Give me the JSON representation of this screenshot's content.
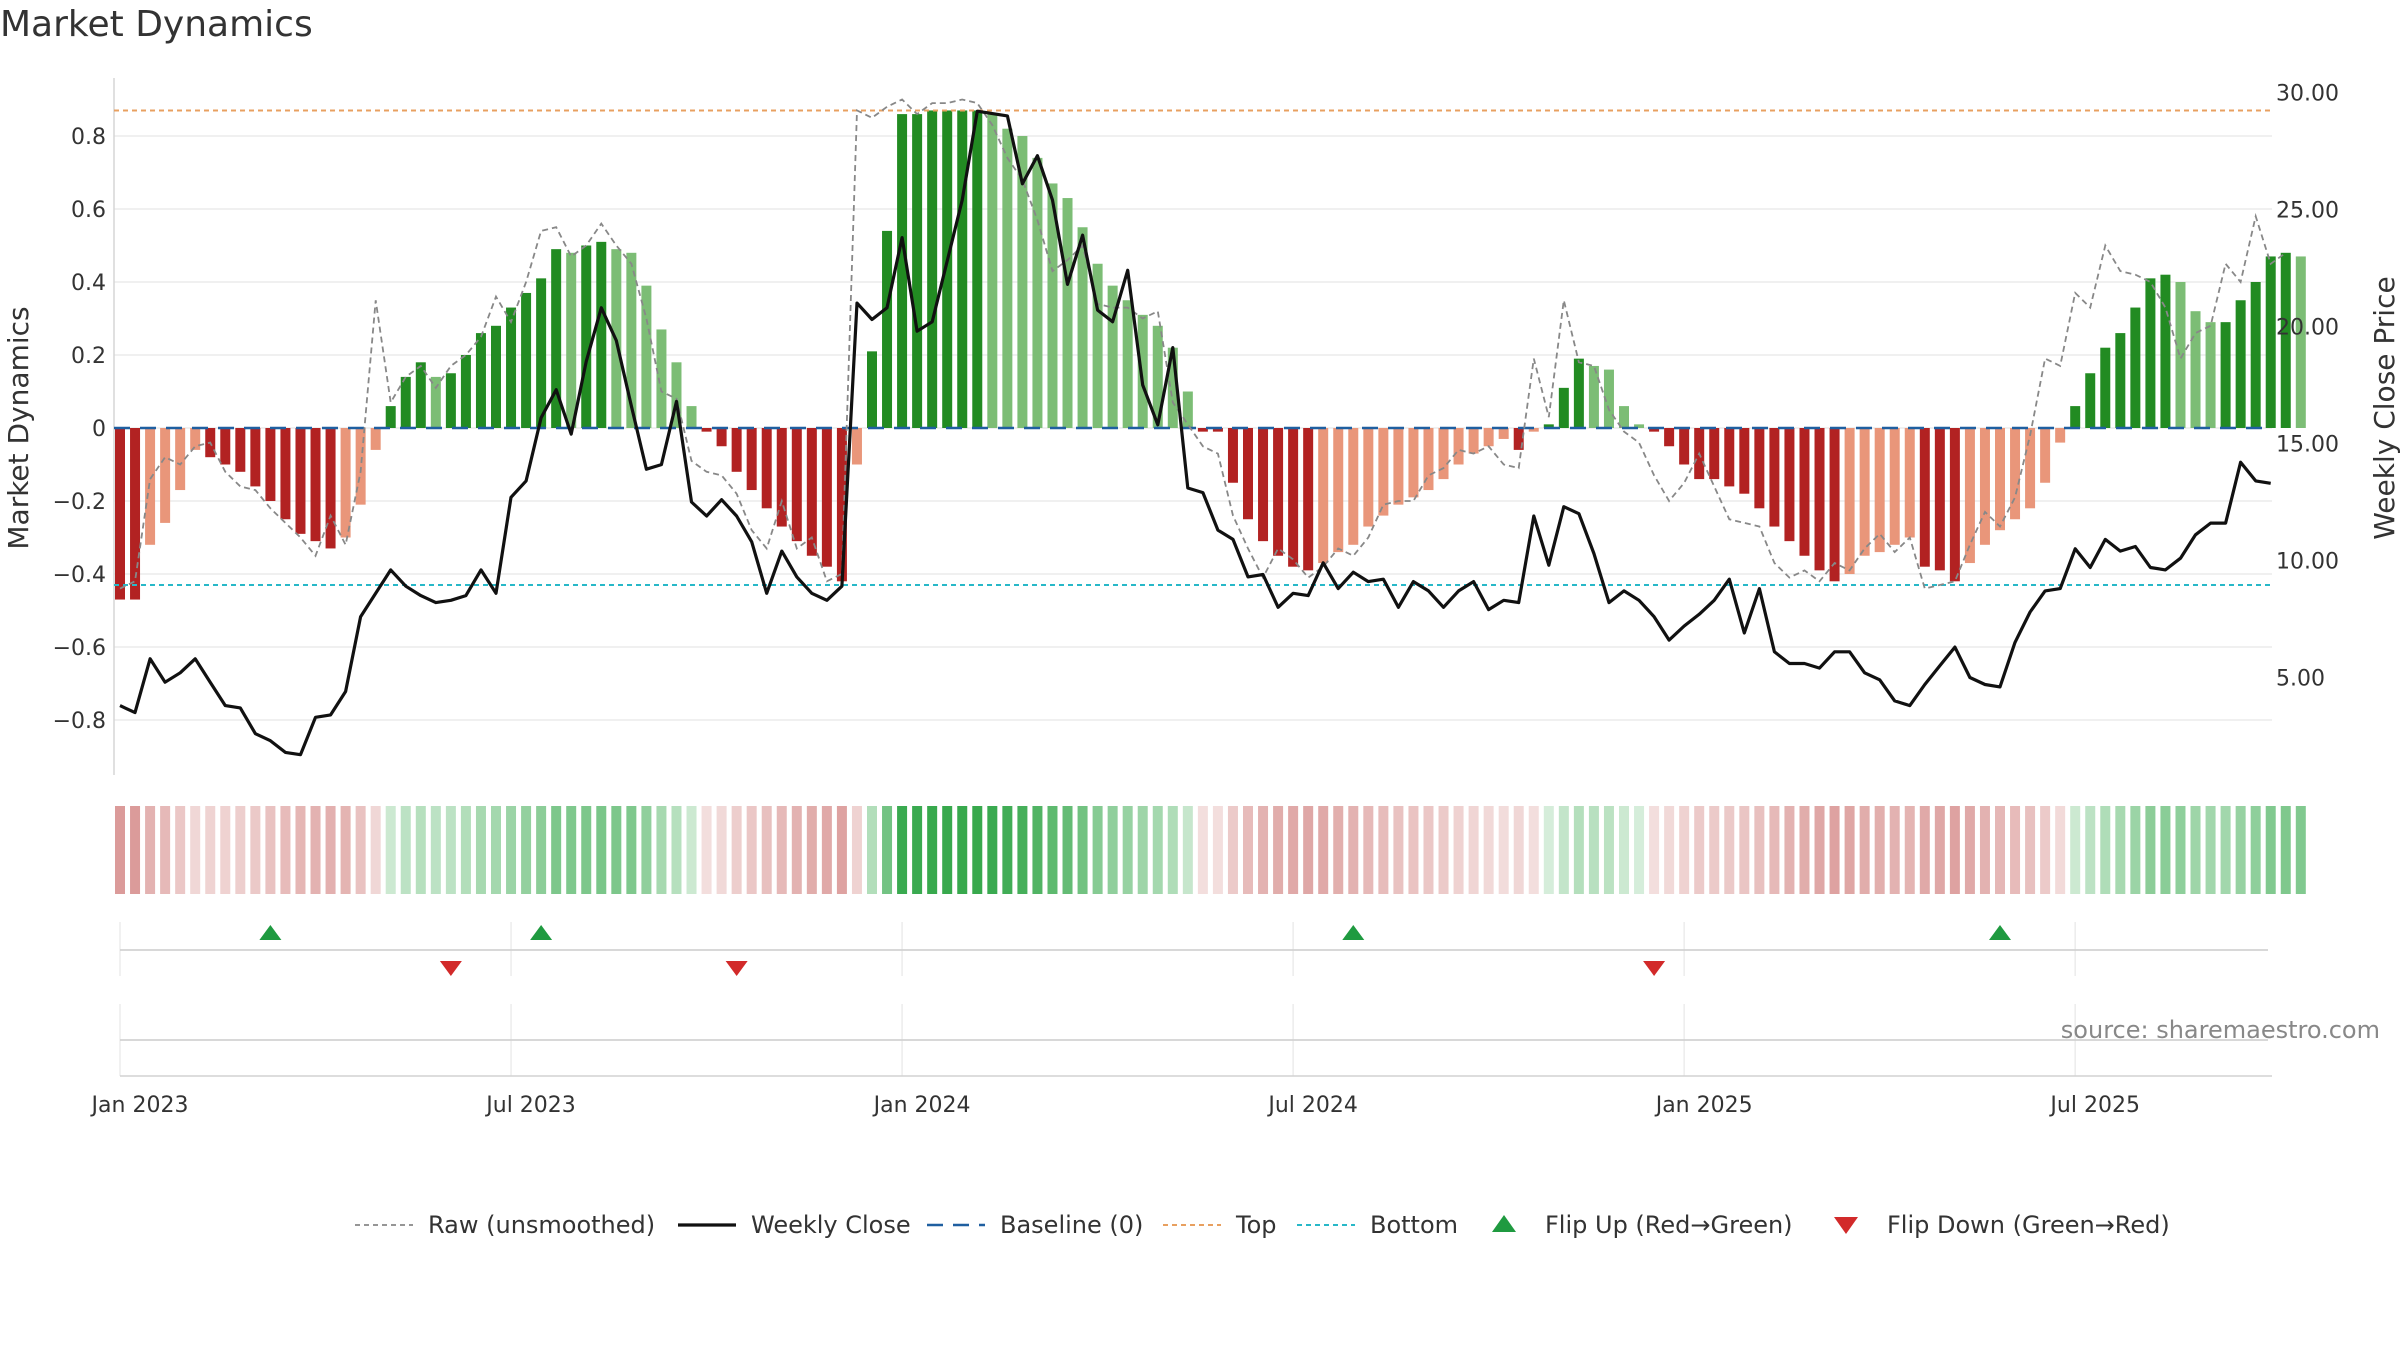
{
  "chart_data": {
    "type": "bar+line",
    "title": "Market Dynamics",
    "ylabel_left": "Market Dynamics",
    "ylabel_right": "Weekly Close Price",
    "ylim_left": [
      -0.95,
      0.95
    ],
    "ylim_right": [
      1.0,
      31.5
    ],
    "left_ticks": [
      0.8,
      0.6,
      0.4,
      0.2,
      0,
      -0.2,
      -0.4,
      -0.6,
      -0.8
    ],
    "left_tick_labels": [
      "0.8",
      "0.6",
      "0.4",
      "0.2",
      "0",
      "−0.2",
      "−0.4",
      "−0.6",
      "−0.8"
    ],
    "right_ticks": [
      30,
      25,
      20,
      15,
      10,
      5
    ],
    "right_tick_labels": [
      "30.00",
      "25.00",
      "20.00",
      "15.00",
      "10.00",
      "5.00"
    ],
    "top_level": 0.87,
    "bottom_level": -0.43,
    "x_tick_weeks": [
      0,
      26,
      52,
      78,
      104,
      130
    ],
    "x_tick_labels": [
      "Jan 2023",
      "Jul 2023",
      "Jan 2024",
      "Jul 2024",
      "Jan 2025",
      "Jul 2025"
    ],
    "dynamics": [
      -0.47,
      -0.47,
      -0.32,
      -0.26,
      -0.17,
      -0.06,
      -0.08,
      -0.1,
      -0.12,
      -0.16,
      -0.2,
      -0.25,
      -0.29,
      -0.31,
      -0.33,
      -0.3,
      -0.21,
      -0.06,
      0.06,
      0.14,
      0.18,
      0.14,
      0.15,
      0.2,
      0.26,
      0.28,
      0.33,
      0.37,
      0.41,
      0.49,
      0.48,
      0.5,
      0.51,
      0.49,
      0.48,
      0.39,
      0.27,
      0.18,
      0.06,
      -0.01,
      -0.05,
      -0.12,
      -0.17,
      -0.22,
      -0.27,
      -0.31,
      -0.35,
      -0.38,
      -0.42,
      -0.1,
      0.21,
      0.54,
      0.86,
      0.86,
      0.87,
      0.87,
      0.87,
      0.87,
      0.86,
      0.82,
      0.8,
      0.74,
      0.67,
      0.63,
      0.55,
      0.45,
      0.39,
      0.35,
      0.31,
      0.28,
      0.22,
      0.1,
      -0.01,
      -0.01,
      -0.15,
      -0.25,
      -0.31,
      -0.35,
      -0.38,
      -0.39,
      -0.37,
      -0.34,
      -0.32,
      -0.27,
      -0.24,
      -0.21,
      -0.19,
      -0.17,
      -0.14,
      -0.1,
      -0.07,
      -0.05,
      -0.03,
      -0.06,
      -0.01,
      0.01,
      0.11,
      0.19,
      0.17,
      0.16,
      0.06,
      0.01,
      -0.01,
      -0.05,
      -0.1,
      -0.14,
      -0.14,
      -0.16,
      -0.18,
      -0.22,
      -0.27,
      -0.31,
      -0.35,
      -0.39,
      -0.42,
      -0.4,
      -0.35,
      -0.34,
      -0.32,
      -0.3,
      -0.38,
      -0.39,
      -0.42,
      -0.37,
      -0.32,
      -0.28,
      -0.25,
      -0.22,
      -0.15,
      -0.04,
      0.06,
      0.15,
      0.22,
      0.26,
      0.33,
      0.41,
      0.42,
      0.4,
      0.32,
      0.29,
      0.29,
      0.35,
      0.4,
      0.47,
      0.48,
      0.47
    ],
    "raw": [
      -0.44,
      -0.42,
      -0.14,
      -0.08,
      -0.1,
      -0.05,
      -0.04,
      -0.12,
      -0.16,
      -0.17,
      -0.22,
      -0.26,
      -0.3,
      -0.35,
      -0.24,
      -0.32,
      -0.12,
      0.35,
      0.07,
      0.14,
      0.17,
      0.11,
      0.17,
      0.2,
      0.25,
      0.36,
      0.29,
      0.4,
      0.54,
      0.55,
      0.47,
      0.5,
      0.56,
      0.5,
      0.45,
      0.3,
      0.1,
      0.08,
      -0.09,
      -0.12,
      -0.13,
      -0.18,
      -0.28,
      -0.33,
      -0.2,
      -0.33,
      -0.3,
      -0.42,
      -0.4,
      0.87,
      0.85,
      0.88,
      0.9,
      0.86,
      0.89,
      0.89,
      0.9,
      0.89,
      0.83,
      0.74,
      0.68,
      0.57,
      0.43,
      0.46,
      0.5,
      0.34,
      0.33,
      0.33,
      0.3,
      0.32,
      0.07,
      0.01,
      -0.05,
      -0.07,
      -0.24,
      -0.33,
      -0.41,
      -0.33,
      -0.36,
      -0.41,
      -0.38,
      -0.33,
      -0.35,
      -0.3,
      -0.21,
      -0.2,
      -0.2,
      -0.13,
      -0.11,
      -0.06,
      -0.07,
      -0.05,
      -0.1,
      -0.11,
      0.19,
      0.03,
      0.35,
      0.18,
      0.17,
      0.05,
      -0.01,
      -0.04,
      -0.13,
      -0.2,
      -0.15,
      -0.07,
      -0.16,
      -0.25,
      -0.26,
      -0.27,
      -0.37,
      -0.41,
      -0.39,
      -0.42,
      -0.37,
      -0.39,
      -0.33,
      -0.29,
      -0.34,
      -0.3,
      -0.44,
      -0.43,
      -0.42,
      -0.32,
      -0.23,
      -0.27,
      -0.19,
      -0.02,
      0.19,
      0.17,
      0.37,
      0.33,
      0.5,
      0.43,
      0.42,
      0.4,
      0.33,
      0.19,
      0.26,
      0.28,
      0.45,
      0.4,
      0.58,
      0.45,
      0.48
    ],
    "close": [
      3.8,
      3.5,
      5.8,
      4.8,
      5.2,
      5.8,
      4.8,
      3.8,
      3.7,
      2.6,
      2.3,
      1.8,
      1.7,
      3.3,
      3.4,
      4.4,
      7.6,
      8.6,
      9.6,
      8.9,
      8.5,
      8.2,
      8.3,
      8.5,
      9.6,
      8.6,
      12.7,
      13.4,
      16.1,
      17.3,
      15.4,
      18.5,
      20.8,
      19.4,
      16.6,
      13.9,
      14.1,
      16.8,
      12.5,
      11.9,
      12.6,
      11.9,
      10.8,
      8.6,
      10.4,
      9.3,
      8.6,
      8.3,
      8.9,
      21.0,
      20.3,
      20.8,
      23.8,
      19.8,
      20.2,
      22.8,
      25.4,
      29.2,
      29.1,
      29.0,
      26.1,
      27.3,
      25.4,
      21.8,
      23.9,
      20.7,
      20.2,
      22.4,
      17.5,
      15.8,
      19.1,
      13.1,
      12.9,
      11.3,
      10.9,
      9.3,
      9.4,
      8.0,
      8.6,
      8.5,
      9.9,
      8.8,
      9.5,
      9.1,
      9.2,
      8.0,
      9.1,
      8.7,
      8.0,
      8.7,
      9.1,
      7.9,
      8.3,
      8.2,
      11.9,
      9.8,
      12.3,
      12.0,
      10.3,
      8.2,
      8.7,
      8.3,
      7.6,
      6.6,
      7.2,
      7.7,
      8.3,
      9.2,
      6.9,
      8.8,
      6.1,
      5.6,
      5.6,
      5.4,
      6.1,
      6.1,
      5.2,
      4.9,
      4.0,
      3.8,
      4.7,
      5.5,
      6.3,
      5.0,
      4.7,
      4.6,
      6.5,
      7.8,
      8.7,
      8.8,
      10.5,
      9.7,
      10.9,
      10.4,
      10.6,
      9.7,
      9.6,
      10.1,
      11.1,
      11.6,
      11.6,
      14.2,
      13.4,
      13.3
    ],
    "flips_up_weeks": [
      10,
      28,
      82,
      125
    ],
    "flips_down_weeks": [
      22,
      41,
      102
    ],
    "legend": [
      "Raw (unsmoothed)",
      "Weekly Close",
      "Baseline (0)",
      "Top",
      "Bottom",
      "Flip Up (Red→Green)",
      "Flip Down (Green→Red)"
    ],
    "source_note": "source: sharemaestro.com",
    "colors": {
      "strong_green": "#228b22",
      "light_green": "#7cbd75",
      "strong_red": "#b22222",
      "light_red": "#e9967a",
      "close_line": "#111111",
      "raw_line": "#888888",
      "baseline": "#1f5fa0",
      "top": "#e8a060",
      "bottom": "#28b8c8",
      "flip_up": "#1f9a40",
      "flip_down": "#d22a2a"
    }
  }
}
